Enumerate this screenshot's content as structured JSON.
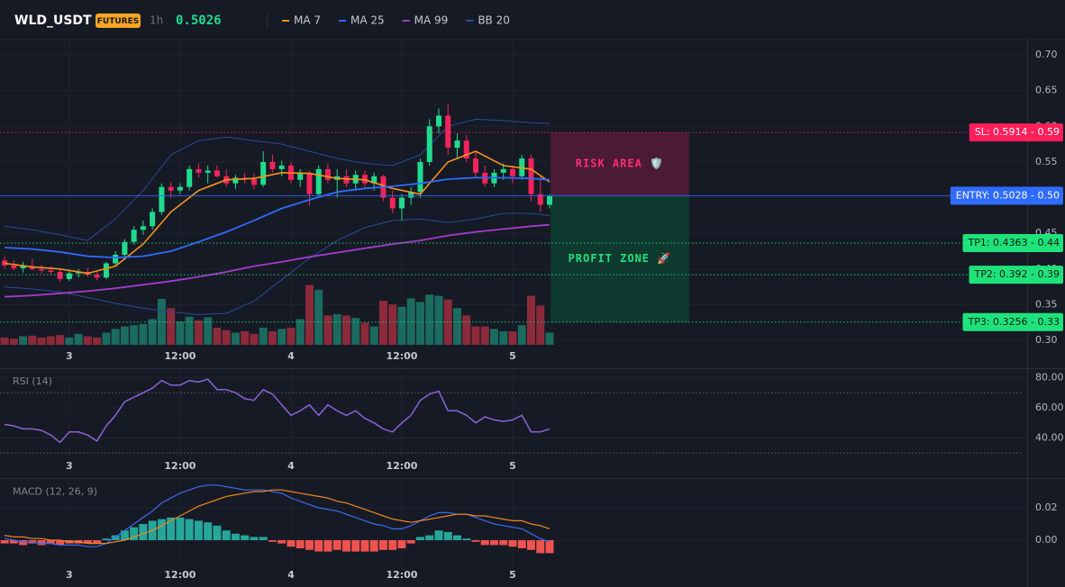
{
  "header": {
    "symbol": "WLD_USDT",
    "badge": "FUTURES",
    "interval": "1h",
    "price": 0.5026
  },
  "chart_data": [
    {
      "type": "candlestick",
      "x": [
        0,
        1,
        2,
        3,
        4,
        5,
        6,
        7,
        8,
        9,
        10,
        11,
        12,
        13,
        14,
        15,
        16,
        17,
        18,
        19,
        20,
        21,
        22,
        23,
        24,
        25,
        26,
        27,
        28,
        29,
        30,
        31,
        32,
        33,
        34,
        35,
        36,
        37,
        38,
        39,
        40,
        41,
        42,
        43,
        44,
        45,
        46,
        47,
        48,
        49,
        50,
        51,
        52,
        53,
        54,
        55,
        56,
        57,
        58,
        59
      ],
      "open": [
        0.412,
        0.405,
        0.401,
        0.404,
        0.4,
        0.398,
        0.396,
        0.386,
        0.394,
        0.396,
        0.392,
        0.388,
        0.408,
        0.42,
        0.438,
        0.455,
        0.46,
        0.48,
        0.515,
        0.51,
        0.515,
        0.54,
        0.535,
        0.538,
        0.53,
        0.52,
        0.528,
        0.526,
        0.518,
        0.55,
        0.54,
        0.545,
        0.525,
        0.535,
        0.505,
        0.54,
        0.525,
        0.53,
        0.52,
        0.532,
        0.52,
        0.53,
        0.5,
        0.485,
        0.5,
        0.508,
        0.55,
        0.6,
        0.615,
        0.57,
        0.58,
        0.555,
        0.535,
        0.52,
        0.535,
        0.54,
        0.53,
        0.555,
        0.505,
        0.49
      ],
      "high": [
        0.418,
        0.412,
        0.41,
        0.414,
        0.406,
        0.404,
        0.4,
        0.398,
        0.4,
        0.402,
        0.396,
        0.41,
        0.425,
        0.442,
        0.46,
        0.468,
        0.485,
        0.52,
        0.522,
        0.52,
        0.545,
        0.548,
        0.545,
        0.545,
        0.54,
        0.532,
        0.535,
        0.534,
        0.565,
        0.56,
        0.552,
        0.55,
        0.54,
        0.538,
        0.545,
        0.548,
        0.54,
        0.54,
        0.538,
        0.538,
        0.535,
        0.532,
        0.51,
        0.505,
        0.515,
        0.555,
        0.61,
        0.625,
        0.632,
        0.59,
        0.588,
        0.565,
        0.545,
        0.54,
        0.548,
        0.545,
        0.56,
        0.56,
        0.53,
        0.505
      ],
      "low": [
        0.4,
        0.398,
        0.395,
        0.398,
        0.394,
        0.392,
        0.382,
        0.383,
        0.388,
        0.389,
        0.384,
        0.386,
        0.404,
        0.416,
        0.434,
        0.448,
        0.455,
        0.476,
        0.5,
        0.505,
        0.51,
        0.528,
        0.52,
        0.528,
        0.515,
        0.512,
        0.52,
        0.512,
        0.515,
        0.535,
        0.53,
        0.52,
        0.515,
        0.488,
        0.5,
        0.52,
        0.5,
        0.515,
        0.512,
        0.515,
        0.51,
        0.495,
        0.478,
        0.468,
        0.49,
        0.5,
        0.545,
        0.59,
        0.56,
        0.555,
        0.55,
        0.528,
        0.515,
        0.515,
        0.525,
        0.52,
        0.525,
        0.495,
        0.48,
        0.485
      ],
      "close": [
        0.405,
        0.401,
        0.404,
        0.4,
        0.398,
        0.396,
        0.386,
        0.394,
        0.396,
        0.392,
        0.388,
        0.408,
        0.42,
        0.438,
        0.455,
        0.46,
        0.48,
        0.515,
        0.51,
        0.515,
        0.54,
        0.535,
        0.538,
        0.53,
        0.52,
        0.528,
        0.526,
        0.518,
        0.55,
        0.54,
        0.545,
        0.525,
        0.535,
        0.505,
        0.54,
        0.525,
        0.53,
        0.52,
        0.532,
        0.52,
        0.53,
        0.5,
        0.485,
        0.5,
        0.508,
        0.55,
        0.6,
        0.615,
        0.57,
        0.58,
        0.555,
        0.535,
        0.52,
        0.535,
        0.54,
        0.53,
        0.555,
        0.505,
        0.49,
        0.502
      ],
      "volume": [
        12,
        10,
        14,
        15,
        12,
        14,
        16,
        12,
        18,
        14,
        12,
        20,
        26,
        30,
        32,
        34,
        42,
        75,
        60,
        38,
        46,
        40,
        45,
        28,
        24,
        20,
        22,
        18,
        28,
        22,
        26,
        28,
        42,
        98,
        90,
        48,
        50,
        48,
        44,
        36,
        30,
        72,
        66,
        62,
        76,
        70,
        82,
        80,
        74,
        60,
        48,
        30,
        30,
        26,
        22,
        22,
        32,
        80,
        64,
        20
      ],
      "volume_ylim": [
        0,
        100
      ],
      "up_color": "#1fdc8c",
      "down_color": "#f2245b",
      "volume_up_color": "#1b6b5f",
      "volume_down_color": "#8b2a3a",
      "xlim": [
        -0.5,
        110.7
      ],
      "xticks": [
        {
          "value": 7,
          "label": "3"
        },
        {
          "value": 19,
          "label": "12:00"
        },
        {
          "value": 31,
          "label": "4"
        },
        {
          "value": 43,
          "label": "12:00"
        },
        {
          "value": 55,
          "label": "5"
        }
      ],
      "ylim": [
        0.29,
        0.72
      ],
      "yticks": [
        {
          "value": 0.3,
          "label": "0.30"
        },
        0.35,
        {
          "value": 0.4,
          "label": "0.40"
        },
        0.45,
        {
          "value": 0.5,
          "label": "0.50"
        },
        0.55,
        {
          "value": 0.6,
          "label": "0.60"
        },
        0.65,
        {
          "value": 0.7,
          "label": "0.70"
        }
      ],
      "grid": true,
      "series": [
        {
          "name": "MA 7",
          "color": "#f7931a",
          "x": [
            0,
            3,
            6,
            9,
            12,
            15,
            18,
            21,
            24,
            27,
            30,
            33,
            36,
            39,
            42,
            45,
            48,
            51,
            54,
            57,
            59
          ],
          "values": [
            0.408,
            0.403,
            0.4,
            0.394,
            0.404,
            0.435,
            0.48,
            0.51,
            0.525,
            0.527,
            0.535,
            0.534,
            0.527,
            0.525,
            0.513,
            0.505,
            0.55,
            0.565,
            0.545,
            0.54,
            0.522
          ]
        },
        {
          "name": "MA 25",
          "color": "#2f6bff",
          "x": [
            0,
            3,
            6,
            9,
            12,
            15,
            18,
            21,
            24,
            27,
            30,
            33,
            36,
            39,
            42,
            45,
            48,
            51,
            54,
            57,
            59
          ],
          "values": [
            0.43,
            0.428,
            0.424,
            0.418,
            0.416,
            0.418,
            0.425,
            0.438,
            0.452,
            0.468,
            0.485,
            0.497,
            0.508,
            0.513,
            0.516,
            0.52,
            0.526,
            0.528,
            0.528,
            0.527,
            0.525
          ]
        },
        {
          "name": "MA 99",
          "color": "#a43cc9",
          "x": [
            0,
            3,
            6,
            9,
            12,
            15,
            18,
            21,
            24,
            27,
            30,
            33,
            36,
            39,
            42,
            45,
            48,
            51,
            54,
            57,
            59
          ],
          "values": [
            0.361,
            0.363,
            0.366,
            0.369,
            0.373,
            0.378,
            0.383,
            0.389,
            0.396,
            0.404,
            0.41,
            0.417,
            0.423,
            0.429,
            0.435,
            0.44,
            0.447,
            0.452,
            0.456,
            0.46,
            0.462
          ]
        },
        {
          "name": "BB 20",
          "color": "#2a4a9e",
          "x": [
            0,
            3,
            6,
            9,
            12,
            15,
            18,
            21,
            24,
            27,
            30,
            33,
            36,
            39,
            42,
            45,
            48,
            51,
            54,
            57,
            59
          ],
          "upper": [
            0.46,
            0.455,
            0.448,
            0.44,
            0.47,
            0.51,
            0.56,
            0.58,
            0.585,
            0.58,
            0.575,
            0.565,
            0.555,
            0.548,
            0.545,
            0.56,
            0.6,
            0.61,
            0.608,
            0.605,
            0.604
          ],
          "lower": [
            0.375,
            0.372,
            0.368,
            0.36,
            0.352,
            0.345,
            0.34,
            0.336,
            0.338,
            0.355,
            0.385,
            0.415,
            0.44,
            0.458,
            0.468,
            0.47,
            0.465,
            0.47,
            0.478,
            0.478,
            0.475
          ]
        }
      ],
      "levels": [
        {
          "label": "SL: 0.5914 - 0.59",
          "value": 0.5914,
          "color": "#ff1f5a",
          "text_color": "#ffffff",
          "line_style": "dotted"
        },
        {
          "label": "ENTRY: 0.5028 - 0.50",
          "value": 0.5028,
          "color": "#2f6bff",
          "text_color": "#ffffff",
          "line_style": "solid"
        },
        {
          "label": "TP1: 0.4363 - 0.44",
          "value": 0.4363,
          "color": "#1ee37a",
          "text_color": "#0b1a12",
          "line_style": "dotted"
        },
        {
          "label": "TP2: 0.392 - 0.39",
          "value": 0.392,
          "color": "#1ee37a",
          "text_color": "#0b1a12",
          "line_style": "dotted"
        },
        {
          "label": "TP3: 0.3256 - 0.33",
          "value": 0.3256,
          "color": "#1ee37a",
          "text_color": "#0b1a12",
          "line_style": "dotted"
        }
      ],
      "zones": [
        {
          "label": "RISK AREA 🛡️",
          "from": 0.5914,
          "to": 0.5028,
          "x_from": 59.1,
          "x_to": 74.1,
          "color": "#4d1a37",
          "text_color": "#ff2d6f"
        },
        {
          "label": "PROFIT ZONE 🚀",
          "from": 0.5028,
          "to": 0.3256,
          "x_from": 59.1,
          "x_to": 74.1,
          "color": "#0e3b2f",
          "text_color": "#1ee37a"
        }
      ]
    },
    {
      "type": "line",
      "title": "RSI (14)",
      "x": [
        0,
        1,
        2,
        3,
        4,
        5,
        6,
        7,
        8,
        9,
        10,
        11,
        12,
        13,
        14,
        15,
        16,
        17,
        18,
        19,
        20,
        21,
        22,
        23,
        24,
        25,
        26,
        27,
        28,
        29,
        30,
        31,
        32,
        33,
        34,
        35,
        36,
        37,
        38,
        39,
        40,
        41,
        42,
        43,
        44,
        45,
        46,
        47,
        48,
        49,
        50,
        51,
        52,
        53,
        54,
        55,
        56,
        57,
        58,
        59
      ],
      "values": [
        49,
        48,
        46,
        46,
        45,
        42,
        37,
        44,
        44,
        42,
        38,
        48,
        55,
        64,
        67,
        70,
        73,
        78,
        75,
        75,
        78,
        77,
        79,
        72,
        72,
        70,
        66,
        65,
        72,
        69,
        62,
        55,
        58,
        62,
        55,
        62,
        58,
        55,
        58,
        53,
        50,
        46,
        44,
        50,
        55,
        65,
        69,
        71,
        58,
        58,
        55,
        50,
        54,
        52,
        51,
        52,
        55,
        44,
        44,
        46
      ],
      "color": "#8a62d8",
      "xlim": [
        -0.5,
        110.7
      ],
      "xticks": [
        {
          "value": 7,
          "label": "3"
        },
        {
          "value": 19,
          "label": "12:00"
        },
        {
          "value": 31,
          "label": "4"
        },
        {
          "value": 43,
          "label": "12:00"
        },
        {
          "value": 55,
          "label": "5"
        }
      ],
      "ylim": [
        26,
        85
      ],
      "yticks": [
        {
          "value": 40,
          "label": "40.00"
        },
        {
          "value": 60,
          "label": "60.00"
        },
        {
          "value": 80,
          "label": "80.00"
        }
      ],
      "levels": [
        70,
        30
      ],
      "grid": true
    },
    {
      "type": "macd",
      "title": "MACD (12, 26, 9)",
      "x": [
        0,
        1,
        2,
        3,
        4,
        5,
        6,
        7,
        8,
        9,
        10,
        11,
        12,
        13,
        14,
        15,
        16,
        17,
        18,
        19,
        20,
        21,
        22,
        23,
        24,
        25,
        26,
        27,
        28,
        29,
        30,
        31,
        32,
        33,
        34,
        35,
        36,
        37,
        38,
        39,
        40,
        41,
        42,
        43,
        44,
        45,
        46,
        47,
        48,
        49,
        50,
        51,
        52,
        53,
        54,
        55,
        56,
        57,
        58,
        59
      ],
      "macd": {
        "color": "#3b6bf0",
        "values": [
          0.001,
          0.0,
          -0.001,
          -0.001,
          -0.002,
          -0.002,
          -0.003,
          -0.003,
          -0.003,
          -0.004,
          -0.004,
          -0.002,
          0.002,
          0.006,
          0.01,
          0.014,
          0.018,
          0.023,
          0.026,
          0.029,
          0.031,
          0.033,
          0.034,
          0.034,
          0.033,
          0.032,
          0.031,
          0.031,
          0.031,
          0.03,
          0.029,
          0.026,
          0.024,
          0.022,
          0.02,
          0.019,
          0.018,
          0.016,
          0.014,
          0.012,
          0.01,
          0.009,
          0.007,
          0.007,
          0.009,
          0.012,
          0.015,
          0.017,
          0.017,
          0.016,
          0.016,
          0.014,
          0.012,
          0.01,
          0.009,
          0.008,
          0.007,
          0.004,
          0.001,
          -0.001
        ]
      },
      "signal": {
        "color": "#f0861e",
        "values": [
          0.003,
          0.002,
          0.002,
          0.001,
          0.001,
          0.0,
          0.0,
          -0.001,
          -0.001,
          -0.002,
          -0.002,
          -0.002,
          -0.001,
          0.0,
          0.002,
          0.004,
          0.006,
          0.009,
          0.012,
          0.015,
          0.018,
          0.021,
          0.023,
          0.025,
          0.027,
          0.028,
          0.029,
          0.03,
          0.03,
          0.031,
          0.031,
          0.03,
          0.029,
          0.028,
          0.027,
          0.026,
          0.024,
          0.023,
          0.021,
          0.019,
          0.017,
          0.015,
          0.013,
          0.012,
          0.011,
          0.012,
          0.013,
          0.014,
          0.015,
          0.016,
          0.016,
          0.015,
          0.015,
          0.014,
          0.013,
          0.012,
          0.012,
          0.01,
          0.009,
          0.007
        ]
      },
      "histogram": {
        "up_color": "#26a69a",
        "down_color": "#ef5350",
        "values": [
          -0.002,
          -0.002,
          -0.003,
          -0.002,
          -0.003,
          -0.002,
          -0.003,
          -0.002,
          -0.002,
          -0.002,
          -0.002,
          0.001,
          0.003,
          0.006,
          0.008,
          0.01,
          0.012,
          0.013,
          0.014,
          0.014,
          0.013,
          0.012,
          0.011,
          0.009,
          0.006,
          0.004,
          0.003,
          0.002,
          0.002,
          -0.001,
          -0.002,
          -0.004,
          -0.005,
          -0.006,
          -0.007,
          -0.007,
          -0.006,
          -0.007,
          -0.007,
          -0.007,
          -0.007,
          -0.006,
          -0.006,
          -0.005,
          -0.002,
          0.002,
          0.003,
          0.006,
          0.005,
          0.003,
          0.001,
          -0.001,
          -0.003,
          -0.003,
          -0.003,
          -0.004,
          -0.005,
          -0.006,
          -0.008,
          -0.008
        ]
      },
      "xlim": [
        -0.5,
        110.7
      ],
      "xticks": [
        {
          "value": 7,
          "label": "3"
        },
        {
          "value": 19,
          "label": "12:00"
        },
        {
          "value": 31,
          "label": "4"
        },
        {
          "value": 43,
          "label": "12:00"
        },
        {
          "value": 55,
          "label": "5"
        }
      ],
      "ylim": [
        -0.015,
        0.037
      ],
      "yticks": [
        {
          "value": 0,
          "label": "0.00"
        },
        0.02
      ],
      "grid": true
    }
  ]
}
